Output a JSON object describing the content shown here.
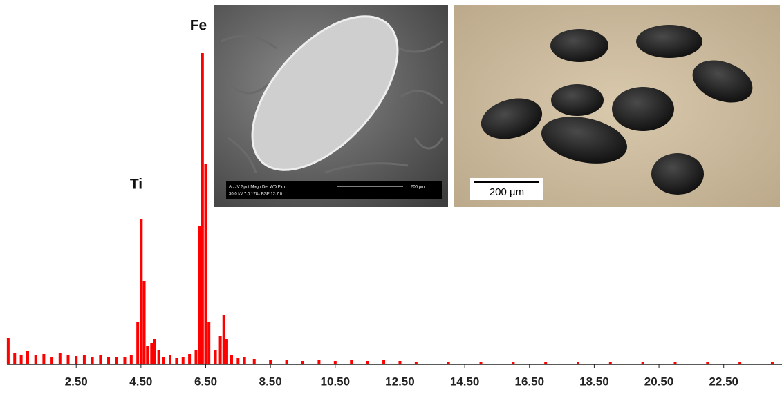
{
  "chart_data": {
    "type": "bar",
    "color": "#ff0000",
    "annotations": [
      {
        "text": "Ti"
      },
      {
        "text": "Fe"
      }
    ],
    "x": [
      0.4,
      0.6,
      0.8,
      1.0,
      1.25,
      1.5,
      1.75,
      2.0,
      2.25,
      2.5,
      2.75,
      3.0,
      3.25,
      3.5,
      3.75,
      4.0,
      4.2,
      4.4,
      4.51,
      4.6,
      4.7,
      4.83,
      4.93,
      5.05,
      5.2,
      5.4,
      5.6,
      5.8,
      6.0,
      6.2,
      6.3,
      6.4,
      6.5,
      6.6,
      6.8,
      6.95,
      7.06,
      7.15,
      7.3,
      7.5,
      7.7,
      8.0,
      8.5,
      9.0,
      9.5,
      10.0,
      10.5,
      11.0,
      11.5,
      12.0,
      12.5,
      13.0,
      14.0,
      15.0,
      16.0,
      17.0,
      18.0,
      19.0,
      20.0,
      21.0,
      22.0,
      23.0,
      24.0
    ],
    "values": [
      37,
      15,
      12,
      18,
      12,
      14,
      10,
      16,
      12,
      11,
      13,
      10,
      12,
      10,
      9,
      10,
      12,
      60,
      209,
      120,
      25,
      30,
      35,
      20,
      10,
      12,
      8,
      9,
      14,
      20,
      200,
      450,
      290,
      60,
      20,
      40,
      70,
      35,
      12,
      8,
      10,
      6,
      5,
      5,
      4,
      5,
      4,
      5,
      4,
      5,
      4,
      3,
      3,
      3,
      3,
      2,
      3,
      2,
      2,
      2,
      3,
      2,
      2
    ],
    "xlim": [
      0.36,
      24.3
    ],
    "ylim": [
      0,
      450
    ],
    "xticks": [
      {
        "value": 2.5,
        "label": "2.50"
      },
      {
        "value": 4.5,
        "label": "4.50"
      },
      {
        "value": 6.5,
        "label": "6.50"
      },
      {
        "value": 8.5,
        "label": "8.50"
      },
      {
        "value": 10.5,
        "label": "10.50"
      },
      {
        "value": 12.5,
        "label": "12.50"
      },
      {
        "value": 14.5,
        "label": "14.50"
      },
      {
        "value": 16.5,
        "label": "16.50"
      },
      {
        "value": 18.5,
        "label": "18.50"
      },
      {
        "value": 20.5,
        "label": "20.50"
      },
      {
        "value": 22.5,
        "label": "22.50"
      }
    ]
  },
  "images": {
    "sem": {
      "info_line_1": "Acc.V  Spot Magn    Det  WD  Exp",
      "info_line_2": "30.0 kV 7.0   178x    BSE 12.7  0",
      "scale": "200 µm"
    },
    "optical": {
      "scale": "200 µm"
    }
  }
}
